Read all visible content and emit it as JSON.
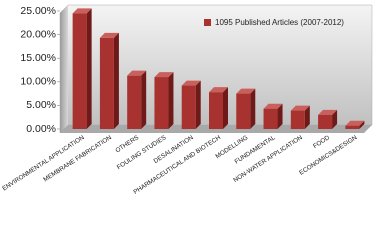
{
  "chart_data": {
    "type": "bar",
    "categories": [
      "ENVIRONMENTAL APPLICATION",
      "MEMBRANE FABRICATION",
      "OTHERS",
      "FOULING STUDIES",
      "DESALINATION",
      "PHARMACEUTICAL AND BIOTECH",
      "MODELLING",
      "FUNDAMENTAL",
      "NON-WATER APPLICATION",
      "FOOD",
      "ECONOMICS&DESIGN"
    ],
    "series": [
      {
        "name": "1095 Published Articles (2007-2012)",
        "color": "#a8322f",
        "values": [
          24.5,
          19.3,
          11.3,
          11.0,
          9.2,
          7.8,
          7.5,
          4.3,
          3.9,
          3.0,
          0.7
        ]
      }
    ],
    "ylim": [
      0,
      25
    ],
    "yticks": [
      {
        "value": 0,
        "label": "0.00%"
      },
      {
        "value": 5,
        "label": "5.00%"
      },
      {
        "value": 10,
        "label": "10.00%"
      },
      {
        "value": 15,
        "label": "15.00%"
      },
      {
        "value": 20,
        "label": "20.00%"
      },
      {
        "value": 25,
        "label": "25.00%"
      }
    ],
    "grid": false
  }
}
